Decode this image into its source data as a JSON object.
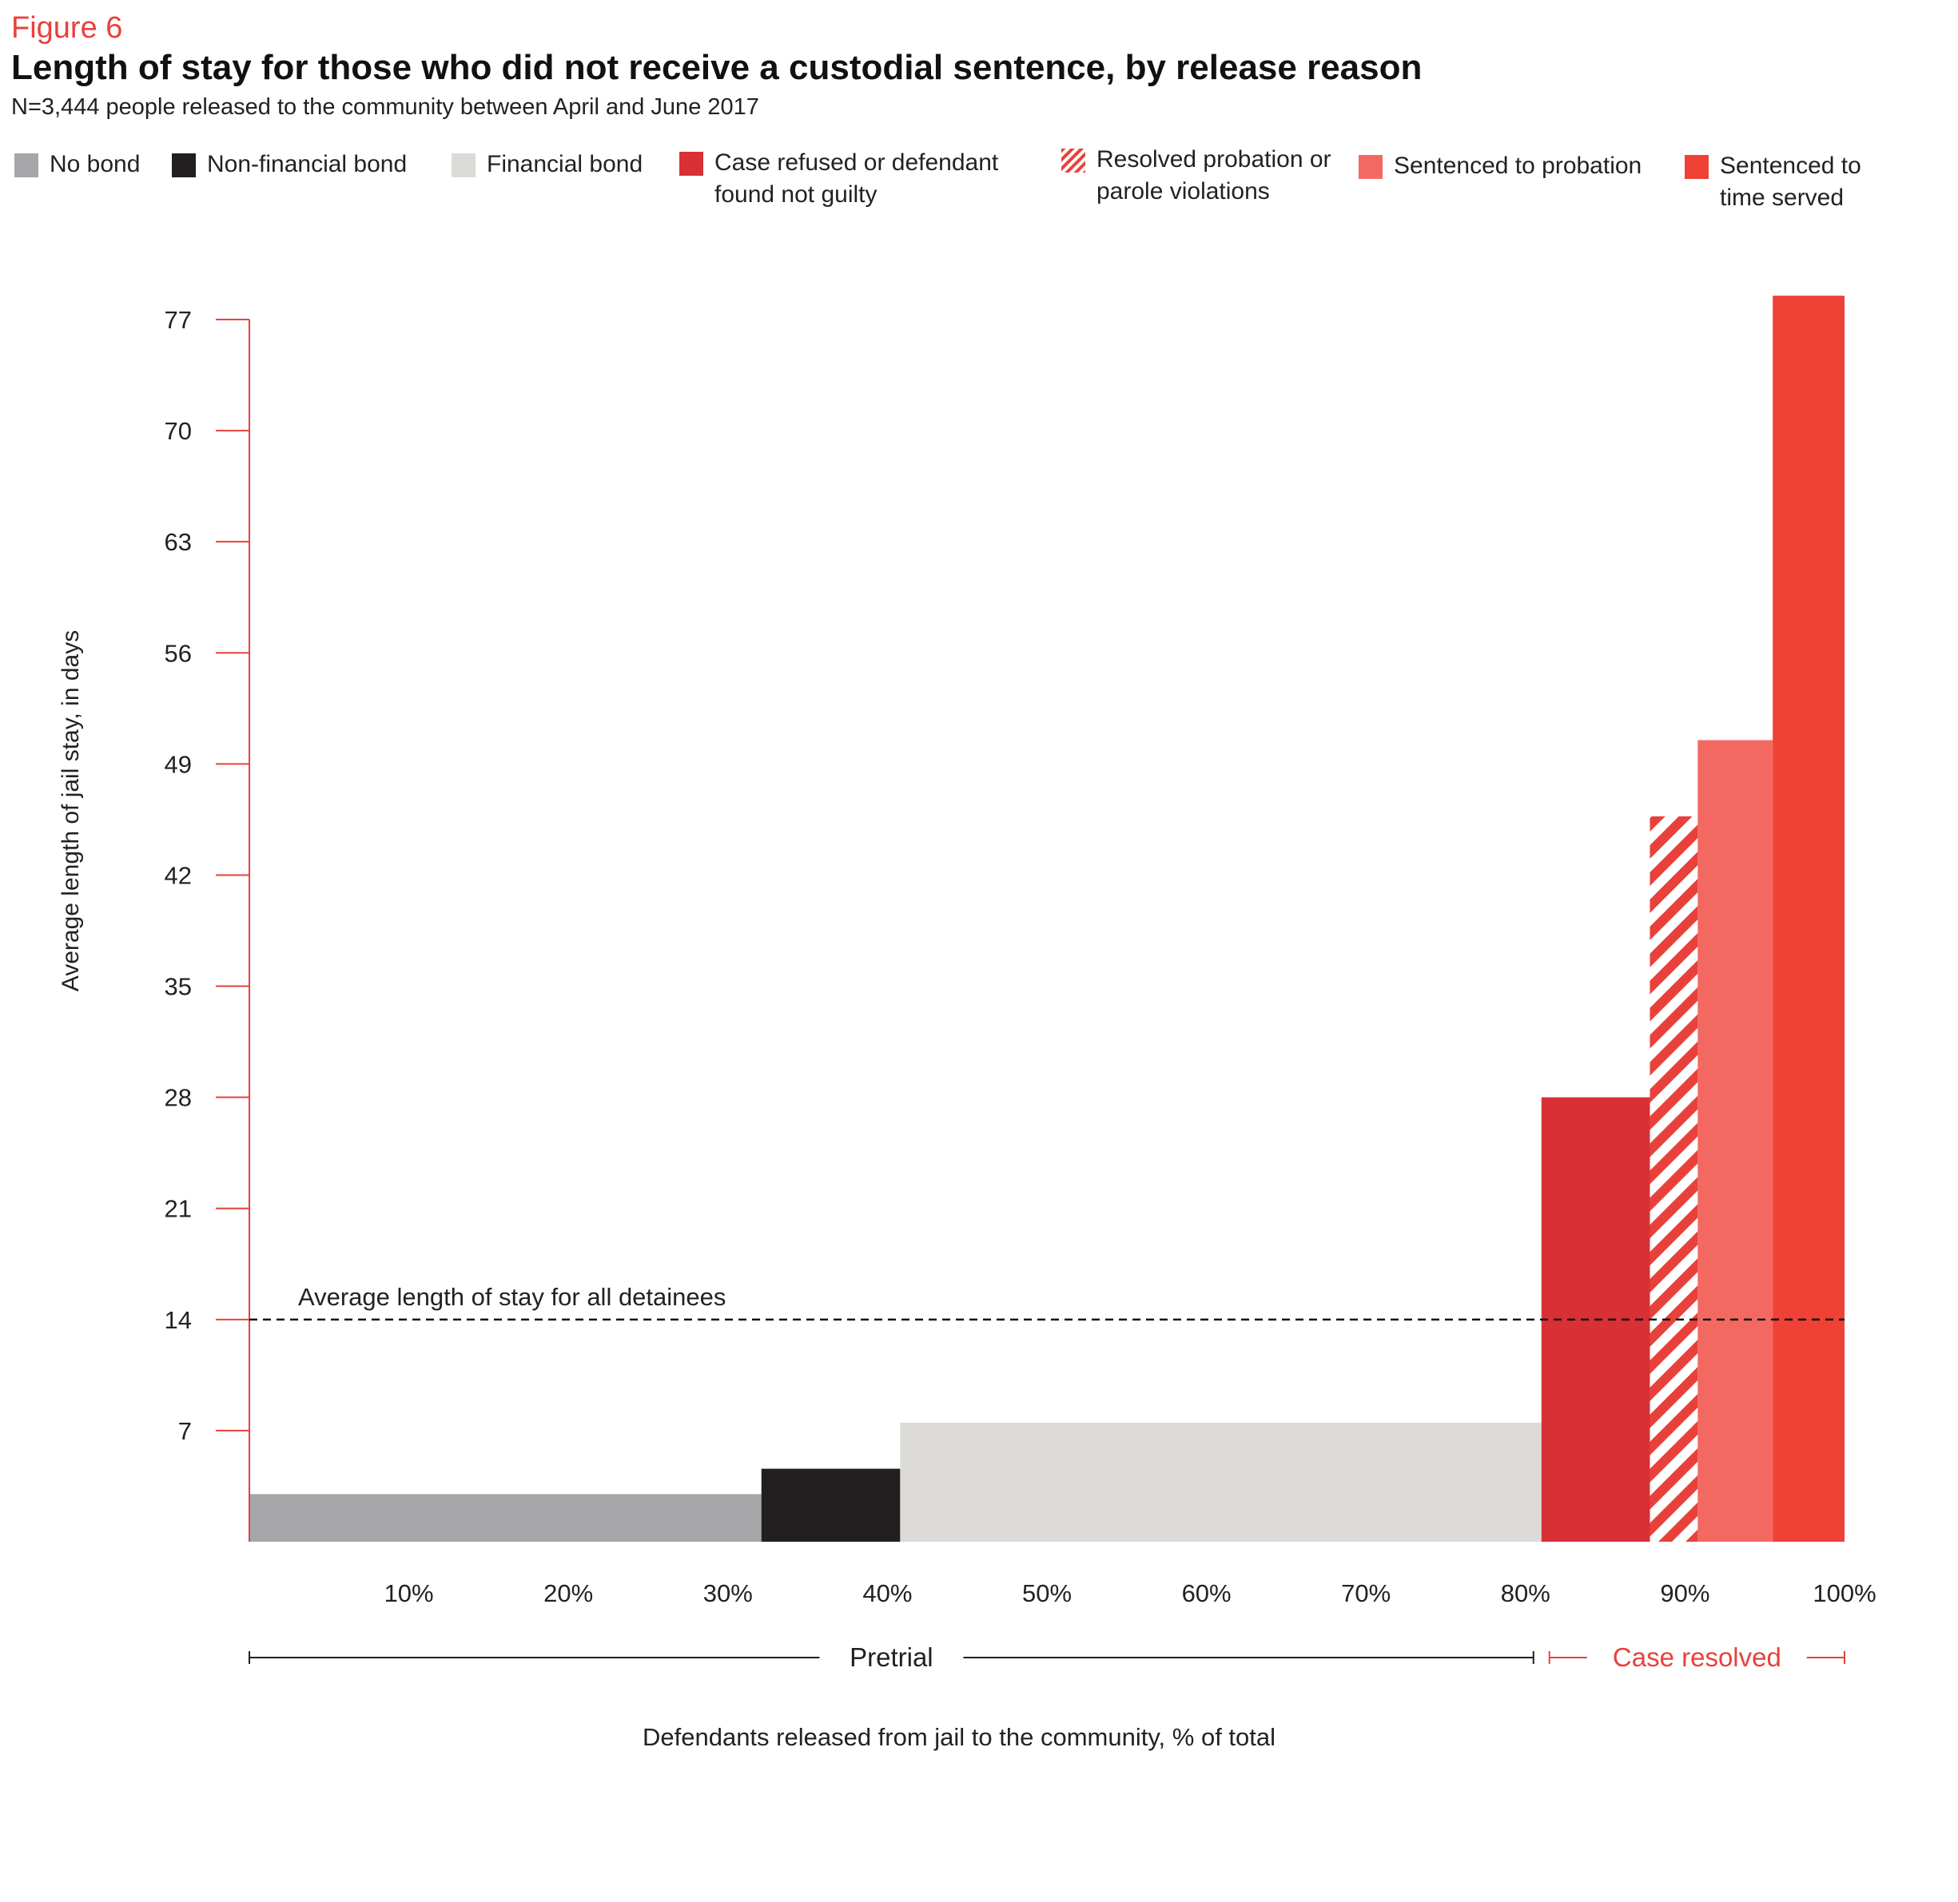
{
  "header": {
    "figure_label": "Figure 6",
    "title": "Length of stay for those who did not receive a custodial sentence, by release reason",
    "subtitle": "N=3,444 people released to the community between April and June 2017"
  },
  "legend": [
    {
      "label": "No bond",
      "color": "#a6a6a9",
      "pattern": "solid"
    },
    {
      "label": "Non-financial bond",
      "color": "#231f20",
      "pattern": "solid"
    },
    {
      "label": "Financial bond",
      "color": "#dcdbd8",
      "pattern": "solid"
    },
    {
      "label": "Case refused or defendant found not guilty",
      "color": "#d93035",
      "pattern": "solid"
    },
    {
      "label": "Resolved probation or parole violations",
      "color": "#e8413b",
      "pattern": "stripes"
    },
    {
      "label": "Sentenced to probation",
      "color": "#f36962",
      "pattern": "solid"
    },
    {
      "label": "Sentenced to time served",
      "color": "#ef4136",
      "pattern": "solid"
    }
  ],
  "chart_data": {
    "type": "bar",
    "title": "Length of stay for those who did not receive a custodial sentence, by release reason",
    "subtitle": "N=3,444 people released to the community between April and June 2017",
    "ylabel": "Average length of jail stay, in days",
    "xlabel": "Defendants released from jail to the community, % of total",
    "ylim": [
      0,
      77
    ],
    "xlim": [
      0,
      100
    ],
    "y_ticks": [
      "7",
      "14",
      "21",
      "28",
      "35",
      "42",
      "49",
      "56",
      "63",
      "70",
      "77"
    ],
    "y_tick_values": [
      7,
      14,
      21,
      28,
      35,
      42,
      49,
      56,
      63,
      70,
      77
    ],
    "x_ticks": [
      "10%",
      "20%",
      "30%",
      "40%",
      "50%",
      "60%",
      "70%",
      "80%",
      "90%",
      "100%"
    ],
    "x_tick_values": [
      10,
      20,
      30,
      40,
      50,
      60,
      70,
      80,
      90,
      100
    ],
    "grid": false,
    "legend_position": "top",
    "bars": [
      {
        "name": "No bond",
        "x_start": 0,
        "x_end": 32.1,
        "value": 3
      },
      {
        "name": "Non-financial bond",
        "x_start": 32.1,
        "x_end": 40.8,
        "value": 4.6
      },
      {
        "name": "Financial bond",
        "x_start": 40.8,
        "x_end": 81.0,
        "value": 7.5
      },
      {
        "name": "Case refused or defendant found not guilty",
        "x_start": 81.0,
        "x_end": 87.8,
        "value": 28
      },
      {
        "name": "Resolved probation or parole violations",
        "x_start": 87.8,
        "x_end": 90.8,
        "value": 45.7
      },
      {
        "name": "Sentenced to probation",
        "x_start": 90.8,
        "x_end": 95.5,
        "value": 50.5
      },
      {
        "name": "Sentenced to time served",
        "x_start": 95.5,
        "x_end": 100,
        "value": 78.5
      }
    ],
    "reference_line": {
      "value": 14,
      "label": "Average length of stay for all detainees"
    },
    "groups": [
      {
        "label": "Pretrial",
        "x_start": 0,
        "x_end": 80.5,
        "color": "#231f20"
      },
      {
        "label": "Case resolved",
        "x_start": 81.5,
        "x_end": 100,
        "color": "#e8413b"
      }
    ],
    "colors": {
      "axis": "#e8413b",
      "text": "#222222"
    }
  }
}
